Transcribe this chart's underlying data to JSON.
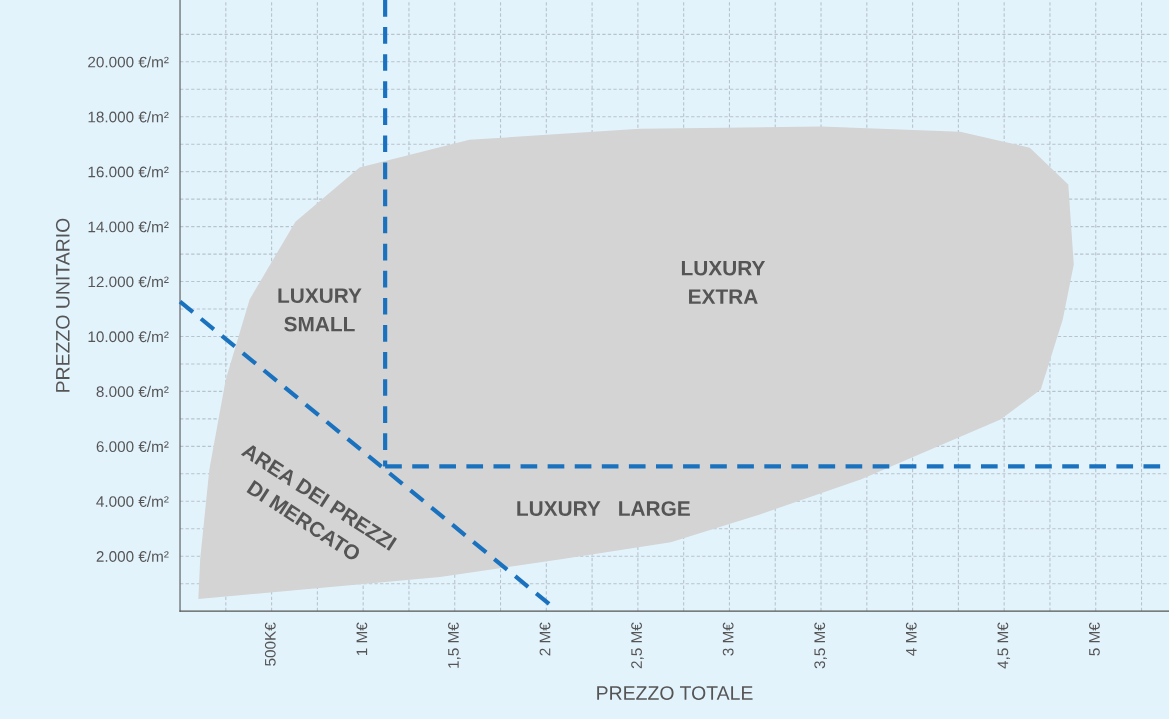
{
  "chart_data": {
    "type": "area",
    "xlabel": "PREZZO TOTALE",
    "ylabel": "PREZZO UNITARIO",
    "xlim": [
      0,
      5400000
    ],
    "ylim": [
      0,
      22250
    ],
    "xticks": [
      {
        "value": 250000,
        "label": null
      },
      {
        "value": 500000,
        "label": "500K€"
      },
      {
        "value": 750000,
        "label": null
      },
      {
        "value": 1000000,
        "label": "1 M€"
      },
      {
        "value": 1250000,
        "label": null
      },
      {
        "value": 1500000,
        "label": "1,5 M€"
      },
      {
        "value": 1750000,
        "label": null
      },
      {
        "value": 2000000,
        "label": "2 M€"
      },
      {
        "value": 2250000,
        "label": null
      },
      {
        "value": 2500000,
        "label": "2,5 M€"
      },
      {
        "value": 2750000,
        "label": null
      },
      {
        "value": 3000000,
        "label": "3 M€"
      },
      {
        "value": 3250000,
        "label": null
      },
      {
        "value": 3500000,
        "label": "3,5 M€"
      },
      {
        "value": 3750000,
        "label": null
      },
      {
        "value": 4000000,
        "label": "4 M€"
      },
      {
        "value": 4250000,
        "label": null
      },
      {
        "value": 4500000,
        "label": "4,5 M€"
      },
      {
        "value": 4750000,
        "label": null
      },
      {
        "value": 5000000,
        "label": "5 M€"
      },
      {
        "value": 5250000,
        "label": null
      }
    ],
    "yticks": [
      {
        "value": 1000,
        "label": null
      },
      {
        "value": 2000,
        "label": "2.000 €/m²"
      },
      {
        "value": 3000,
        "label": null
      },
      {
        "value": 4000,
        "label": "4.000 €/m²"
      },
      {
        "value": 5000,
        "label": null
      },
      {
        "value": 6000,
        "label": "6.000 €/m²"
      },
      {
        "value": 7000,
        "label": null
      },
      {
        "value": 8000,
        "label": "8.000 €/m²"
      },
      {
        "value": 9000,
        "label": null
      },
      {
        "value": 10000,
        "label": "10.000 €/m²"
      },
      {
        "value": 11000,
        "label": null
      },
      {
        "value": 12000,
        "label": "12.000 €/m²"
      },
      {
        "value": 13000,
        "label": null
      },
      {
        "value": 14000,
        "label": "14.000 €/m²"
      },
      {
        "value": 15000,
        "label": null
      },
      {
        "value": 16000,
        "label": "16.000 €/m²"
      },
      {
        "value": 17000,
        "label": null
      },
      {
        "value": 18000,
        "label": "18.000 €/m²"
      },
      {
        "value": 19000,
        "label": null
      },
      {
        "value": 20000,
        "label": "20.000 €/m²"
      },
      {
        "value": 21000,
        "label": null
      }
    ],
    "grid": true,
    "series": [
      {
        "color": "#d4d4d4",
        "x": [
          100000,
          1420000,
          2080000,
          2680000,
          3170000,
          3720000,
          4480000,
          4700000,
          4820000,
          4880000,
          4850000,
          4640000,
          4260000,
          3500000,
          2510000,
          1580000,
          980000,
          630000,
          380000,
          250000,
          160000,
          110000
        ],
        "values": [
          440,
          1240,
          1890,
          2510,
          3530,
          4800,
          6980,
          8070,
          10620,
          12620,
          15530,
          16870,
          17450,
          17640,
          17560,
          17160,
          16150,
          14180,
          11350,
          8440,
          5160,
          1890
        ]
      },
      {
        "type": "line",
        "line_style": "dashed",
        "color": "#1a72bf",
        "x": [
          0,
          2030000
        ],
        "values": [
          11270,
          180
        ]
      },
      {
        "type": "line",
        "line_style": "dashed",
        "color": "#1a72bf",
        "x": [
          1120000,
          1120000
        ],
        "values": [
          22250,
          5270
        ]
      },
      {
        "type": "line",
        "line_style": "dashed",
        "color": "#1a72bf",
        "x": [
          1120000,
          5400000
        ],
        "values": [
          5270,
          5270
        ]
      }
    ],
    "annotations": [
      "LUXURY\nSMALL",
      "LUXURY\nEXTRA",
      "LUXURY   LARGE",
      "AREA DEI PREZZI\nDI MERCATO"
    ]
  }
}
